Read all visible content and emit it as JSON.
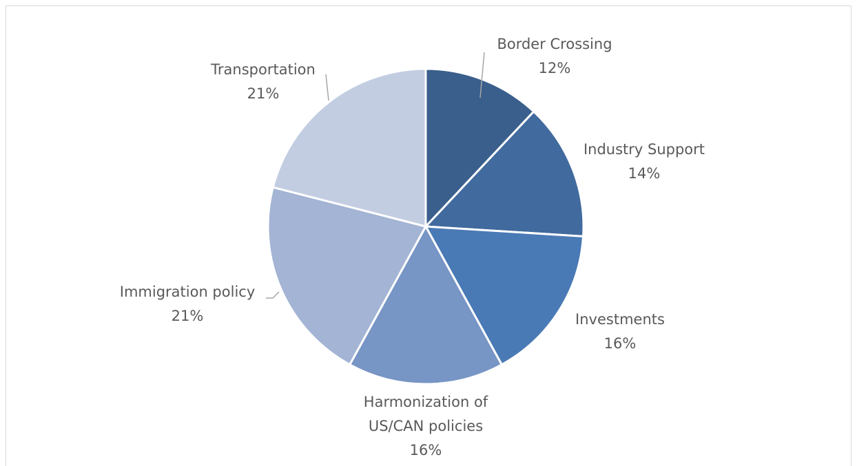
{
  "chart_data": {
    "type": "pie",
    "categories": [
      "Border Crossing",
      "Industry Support",
      "Investments",
      "Harmonization of US/CAN policies",
      "Immigration policy",
      "Transportation"
    ],
    "values": [
      12,
      14,
      16,
      16,
      21,
      21
    ],
    "value_labels": [
      "12%",
      "14%",
      "16%",
      "16%",
      "21%",
      "21%"
    ],
    "colors": [
      "#3a5f8c",
      "#416a9e",
      "#4a7ab5",
      "#7795c5",
      "#a3b4d4",
      "#c3cde2"
    ]
  }
}
